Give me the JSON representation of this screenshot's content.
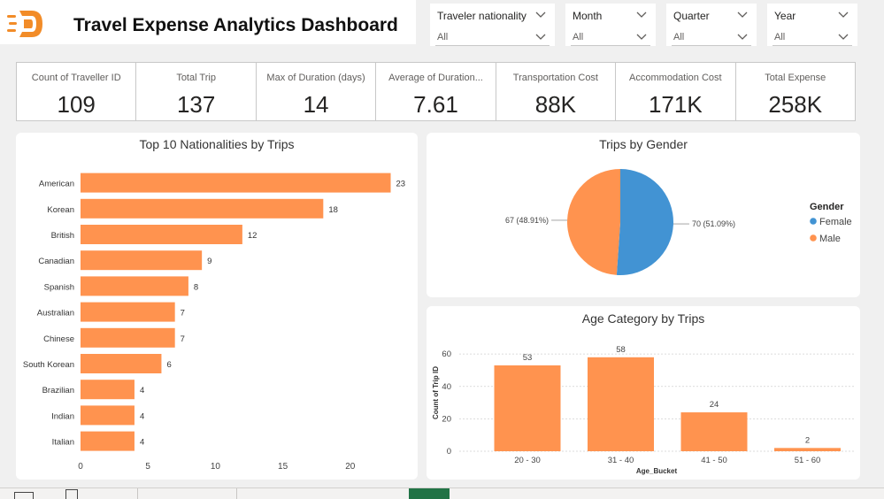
{
  "header": {
    "title": "Travel Expense Analytics Dashboard",
    "brand_color": "#F28C28"
  },
  "slicers": [
    {
      "label": "Traveler nationality",
      "value": "All"
    },
    {
      "label": "Month",
      "value": "All"
    },
    {
      "label": "Quarter",
      "value": "All"
    },
    {
      "label": "Year",
      "value": "All"
    }
  ],
  "kpis": [
    {
      "label": "Count of Traveller ID",
      "value": "109"
    },
    {
      "label": "Total Trip",
      "value": "137"
    },
    {
      "label": "Max of Duration (days)",
      "value": "14"
    },
    {
      "label": "Average of Duration...",
      "value": "7.61"
    },
    {
      "label": "Transportation Cost",
      "value": "88K"
    },
    {
      "label": "Accommodation Cost",
      "value": "171K"
    },
    {
      "label": "Total Expense",
      "value": "258K"
    }
  ],
  "chart_data": [
    {
      "type": "bar",
      "orientation": "horizontal",
      "title": "Top 10 Nationalities by Trips",
      "categories": [
        "American",
        "Korean",
        "British",
        "Canadian",
        "Spanish",
        "Australian",
        "Chinese",
        "South Korean",
        "Brazilian",
        "Indian",
        "Italian"
      ],
      "values": [
        23,
        18,
        12,
        9,
        8,
        7,
        7,
        6,
        4,
        4,
        4
      ],
      "xticks": [
        0,
        5,
        10,
        15,
        20
      ],
      "xlim": [
        0,
        25
      ],
      "color": "#FF934F"
    },
    {
      "type": "pie",
      "title": "Trips by Gender",
      "legend_title": "Gender",
      "slices": [
        {
          "name": "Female",
          "value": 70,
          "label": "70 (51.09%)",
          "color": "#4293D3"
        },
        {
          "name": "Male",
          "value": 67,
          "label": "67 (48.91%)",
          "color": "#FF934F"
        }
      ]
    },
    {
      "type": "bar",
      "orientation": "vertical",
      "title": "Age Category by Trips",
      "xlabel": "Age_Bucket",
      "ylabel": "Count of Trip ID",
      "categories": [
        "20 - 30",
        "31 - 40",
        "41 - 50",
        "51 - 60"
      ],
      "values": [
        53,
        58,
        24,
        2
      ],
      "yticks": [
        0,
        20,
        40,
        60
      ],
      "ylim": [
        0,
        65
      ],
      "color": "#FF934F"
    }
  ]
}
